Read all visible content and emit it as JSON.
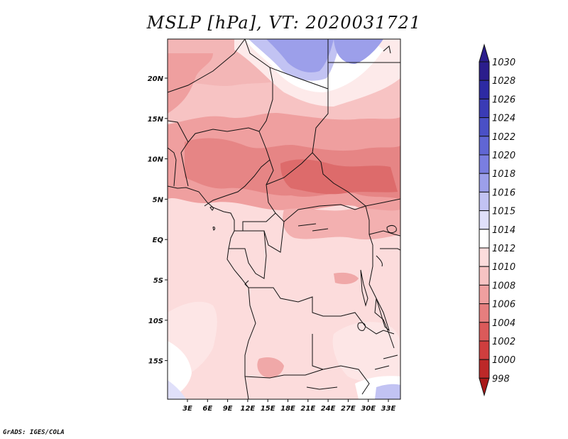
{
  "title": "MSLP [hPa], VT: 2020031721",
  "credit": "GrADS: IGES/COLA",
  "lat_ticks": [
    "20N",
    "15N",
    "10N",
    "5N",
    "EQ",
    "5S",
    "10S",
    "15S"
  ],
  "lon_ticks": [
    "3E",
    "6E",
    "9E",
    "12E",
    "15E",
    "18E",
    "21E",
    "24E",
    "27E",
    "30E",
    "33E"
  ],
  "colorbar": {
    "levels": [
      {
        "label": "1030",
        "color": "#2b1d8c"
      },
      {
        "label": "1028",
        "color": "#2d2aa3"
      },
      {
        "label": "1026",
        "color": "#3a3bb5"
      },
      {
        "label": "1024",
        "color": "#4a50c6"
      },
      {
        "label": "1022",
        "color": "#6066d4"
      },
      {
        "label": "1020",
        "color": "#7a7ee0"
      },
      {
        "label": "1018",
        "color": "#9c9fea"
      },
      {
        "label": "1016",
        "color": "#c2c3f3"
      },
      {
        "label": "1015",
        "color": "#e0e0fa"
      },
      {
        "label": "1014",
        "color": "#ffffff"
      },
      {
        "label": "1012",
        "color": "#fcdcdc"
      },
      {
        "label": "1010",
        "color": "#f7c3c3"
      },
      {
        "label": "1008",
        "color": "#ef9f9f"
      },
      {
        "label": "1006",
        "color": "#e67e7e"
      },
      {
        "label": "1004",
        "color": "#db5a5a"
      },
      {
        "label": "1002",
        "color": "#cf3e3e"
      },
      {
        "label": "1000",
        "color": "#bd2828"
      },
      {
        "label": "998",
        "color": "#a81818"
      }
    ]
  }
}
